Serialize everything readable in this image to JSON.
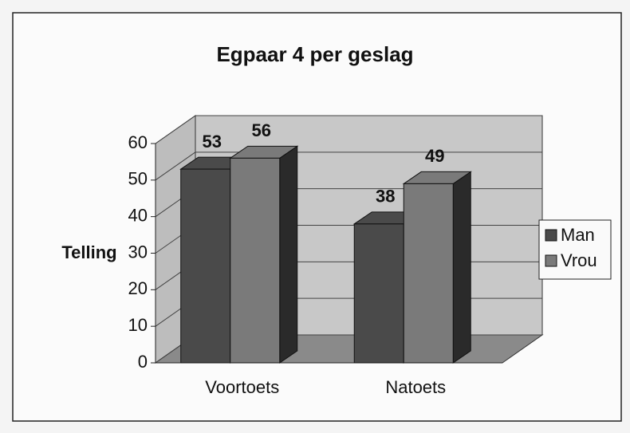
{
  "chart_data": {
    "type": "bar3d",
    "title": "Egpaar 4 per geslag",
    "ylabel": "Telling",
    "categories": [
      "Voortoets",
      "Natoets"
    ],
    "series": [
      {
        "name": "Man",
        "color": "#4a4a4a",
        "values": [
          53,
          38
        ]
      },
      {
        "name": "Vrou",
        "color": "#7a7a7a",
        "values": [
          56,
          49
        ]
      }
    ],
    "ylim": [
      0,
      60
    ],
    "yticks": [
      0,
      10,
      20,
      30,
      40,
      50,
      60
    ],
    "grid": true,
    "legend": "right"
  }
}
